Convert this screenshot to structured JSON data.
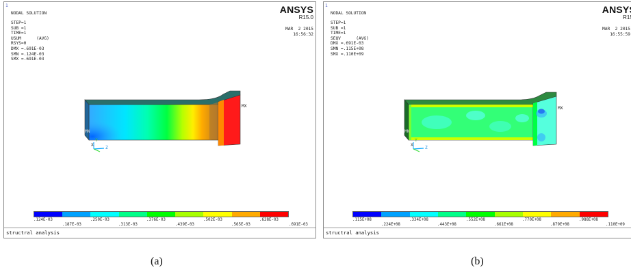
{
  "panels": [
    {
      "id": "a",
      "frame_number": "1",
      "header": "NODAL SOLUTION",
      "step": "STEP=1",
      "sub": "SUB =1",
      "time": "TIME=1",
      "result": "USUM      (AVG)",
      "rsys": "RSYS=0",
      "dmx": "DMX =.691E-03",
      "smn": "SMN =.124E-03",
      "smx": "SMX =.691E-03",
      "logo": "ANSYS",
      "release": "R15.0",
      "date": "MAR  2 2015",
      "time_stamp": "16:56:32",
      "legend_top": [
        ".124E-03",
        ".250E-03",
        ".376E-03",
        ".502E-03",
        ".628E-03"
      ],
      "legend_bottom": [
        ".187E-03",
        ".313E-03",
        ".439E-03",
        ".565E-03",
        ".691E-03"
      ],
      "footer": "structral analysis",
      "mx_label": "MX",
      "mn_label": "MN",
      "axis_x": "X",
      "axis_y": "Y",
      "axis_z": "Z",
      "caption": "(a)"
    },
    {
      "id": "b",
      "frame_number": "1",
      "header": "NODAL SOLUTION",
      "step": "STEP=1",
      "sub": "SUB =1",
      "time": "TIME=1",
      "result": "SEQV      (AVG)",
      "dmx": "DMX =.691E-03",
      "smn": "SMN =.115E+08",
      "smx": "SMX =.110E+09",
      "logo": "ANSYS",
      "release": "R15.",
      "date": "MAR  2 2015",
      "time_stamp": "16:55:59",
      "legend_top": [
        ".115E+08",
        ".334E+08",
        ".552E+08",
        ".770E+08",
        ".988E+08"
      ],
      "legend_bottom": [
        ".224E+08",
        ".443E+08",
        ".661E+08",
        ".879E+08",
        ".110E+09"
      ],
      "footer": "structral analysis",
      "mx_label": "MX",
      "mn_label": "MN",
      "axis_x": "X",
      "axis_y": "Y",
      "axis_z": "Z",
      "caption": "(b)"
    }
  ],
  "colors": {
    "legend": [
      "#0000ff",
      "#00a2ff",
      "#00ffff",
      "#00ff88",
      "#00ff00",
      "#a8ff00",
      "#ffff00",
      "#ffaa00",
      "#ff0000"
    ]
  }
}
